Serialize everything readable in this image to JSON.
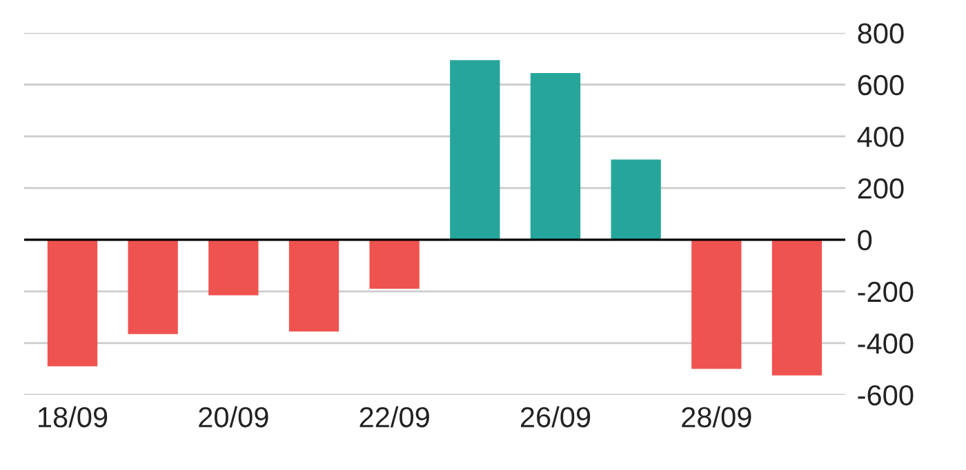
{
  "chart_data": {
    "type": "bar",
    "categories": [
      "18/09",
      null,
      "20/09",
      null,
      "22/09",
      null,
      "26/09",
      null,
      "28/09",
      null
    ],
    "values": [
      -490,
      -365,
      -215,
      -355,
      -190,
      695,
      645,
      310,
      -500,
      -525
    ],
    "colors": [
      "#ef5350",
      "#ef5350",
      "#ef5350",
      "#ef5350",
      "#ef5350",
      "#26a69a",
      "#26a69a",
      "#26a69a",
      "#ef5350",
      "#ef5350"
    ],
    "ylim": [
      -600,
      800
    ],
    "yticks": [
      -600,
      -400,
      -200,
      0,
      200,
      400,
      600,
      800
    ],
    "grid": "y",
    "ref_lines": [
      {
        "axis": "y",
        "value": 0,
        "color": "#000000"
      }
    ]
  }
}
